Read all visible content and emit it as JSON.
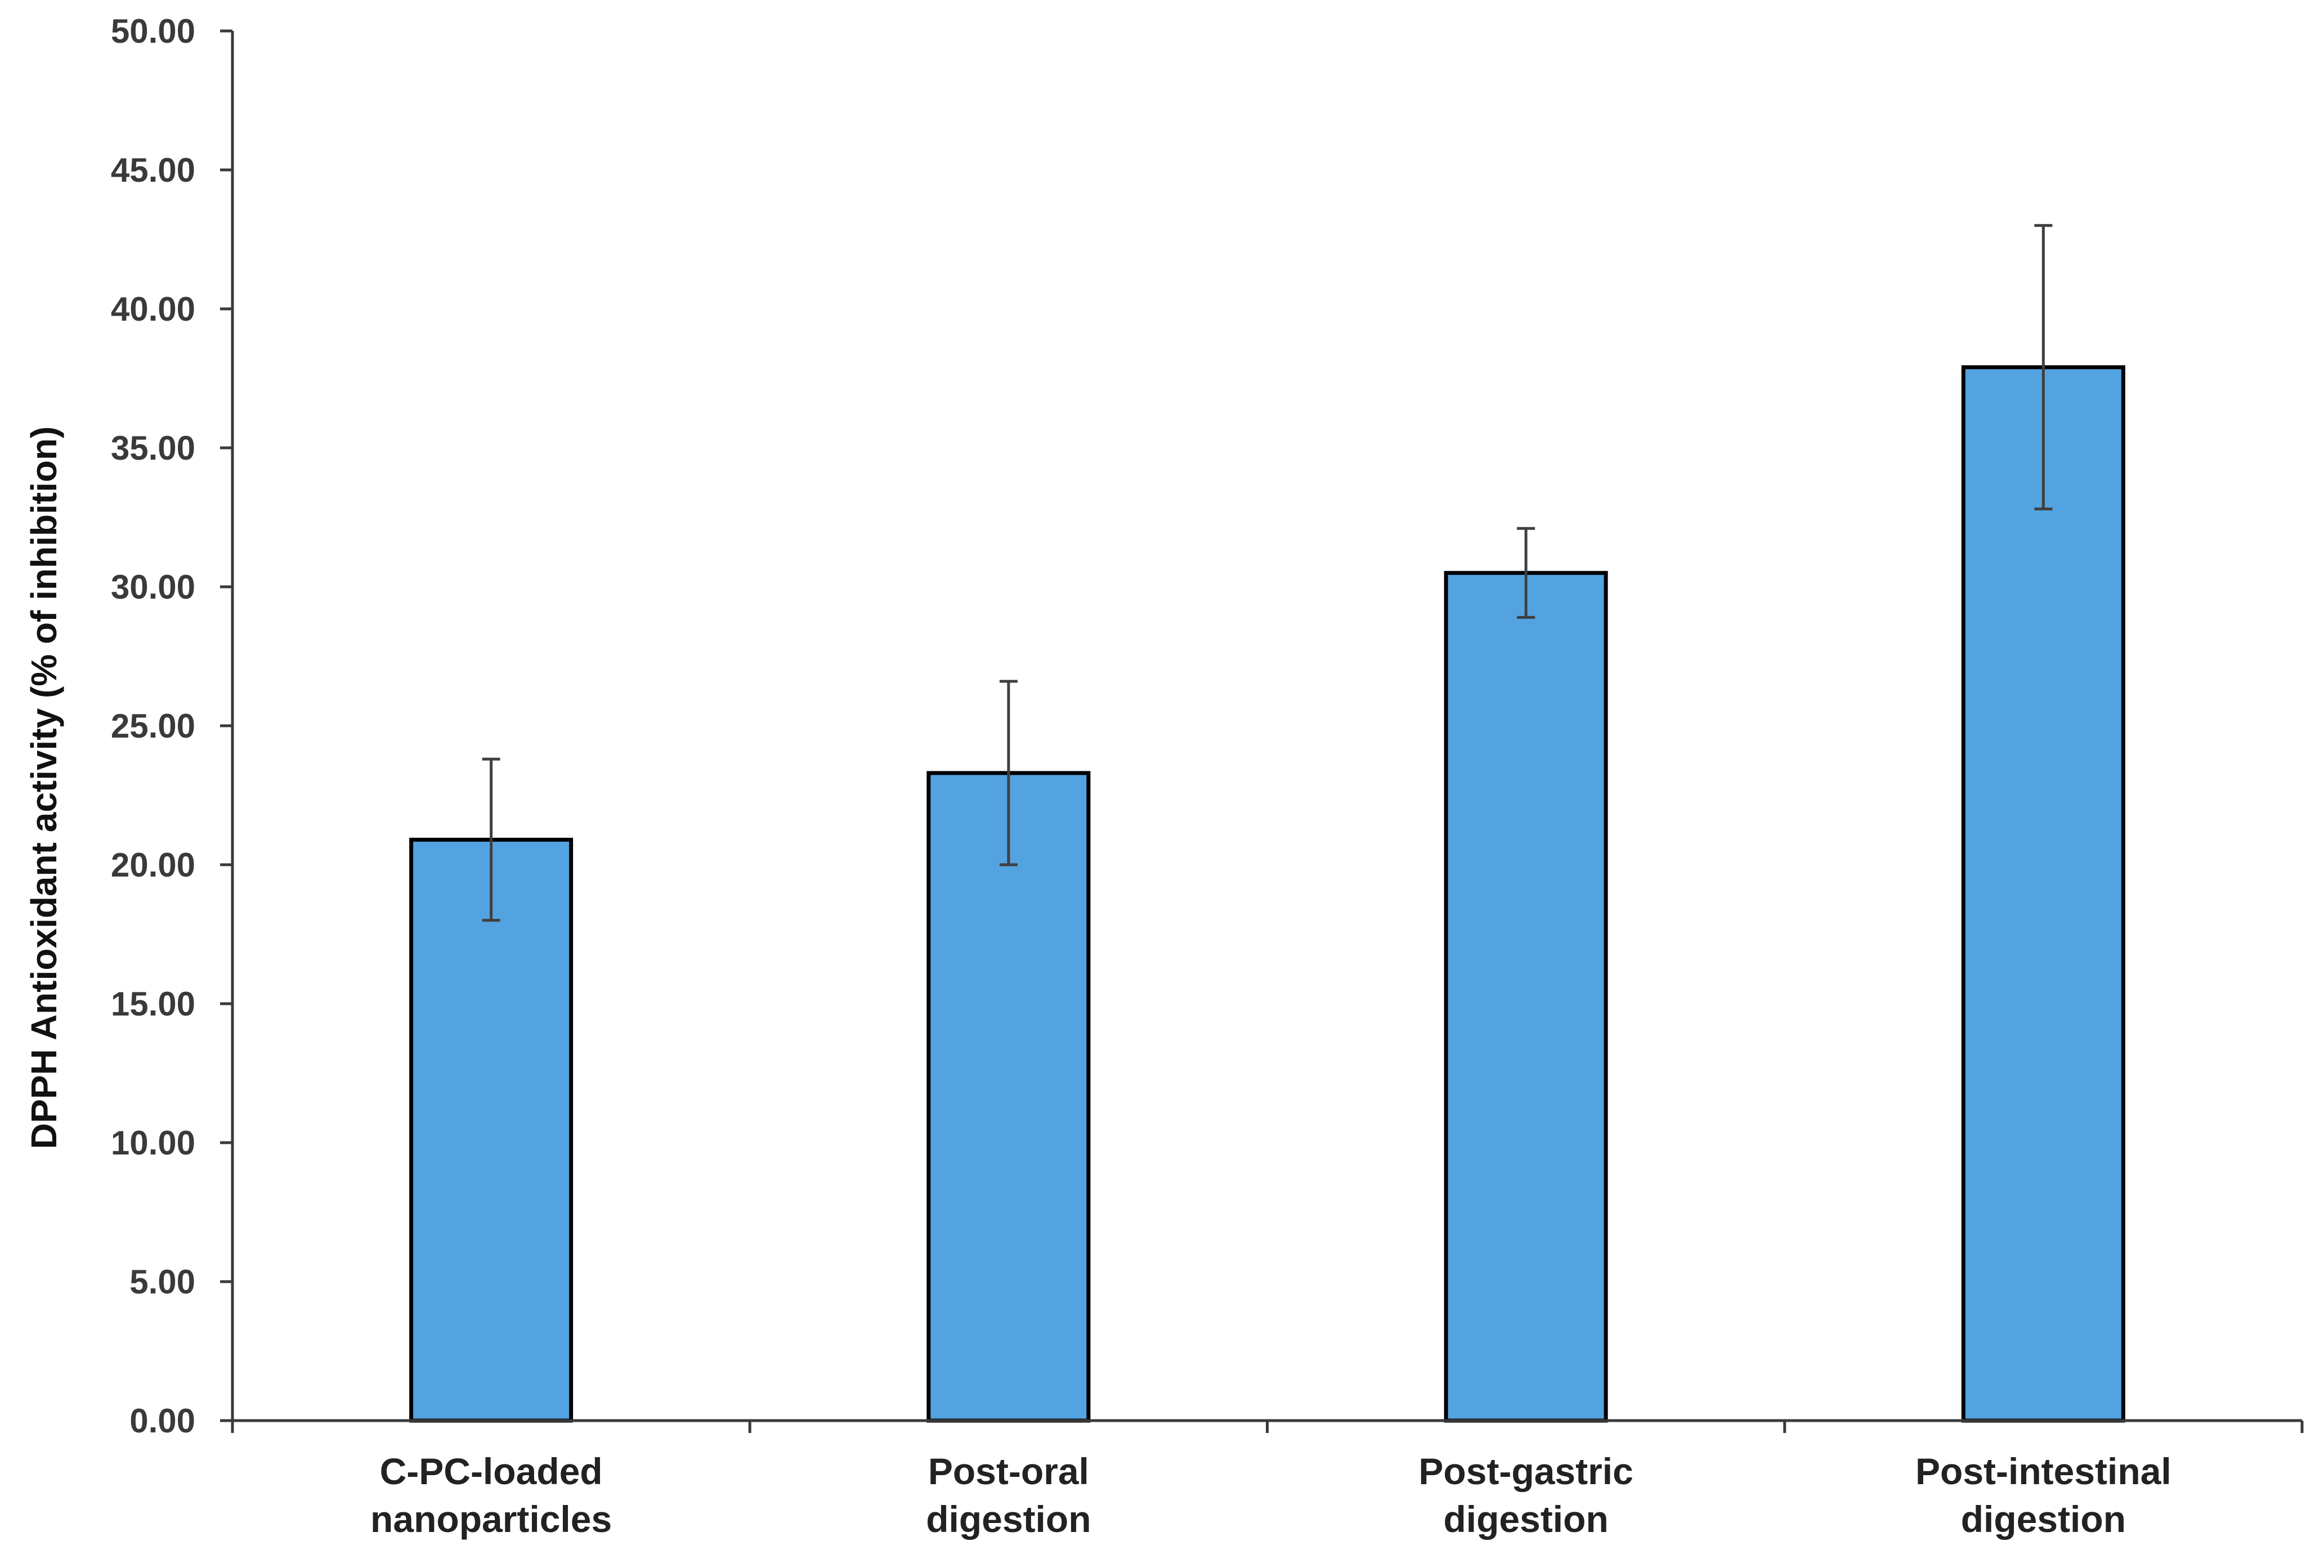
{
  "chart_data": {
    "type": "bar",
    "title": "",
    "xlabel": "",
    "ylabel": "DPPH Antioxidant activity (% of inhibition)",
    "ylim": [
      0,
      50
    ],
    "yticks": [
      "0.00",
      "5.00",
      "10.00",
      "15.00",
      "20.00",
      "25.00",
      "30.00",
      "35.00",
      "40.00",
      "45.00",
      "50.00"
    ],
    "categories": [
      [
        "C-PC-loaded",
        "nanoparticles"
      ],
      [
        "Post-oral",
        "digestion"
      ],
      [
        "Post-gastric",
        "digestion"
      ],
      [
        "Post-intestinal",
        "digestion"
      ]
    ],
    "values": [
      20.9,
      23.3,
      30.5,
      37.9
    ],
    "error": [
      2.9,
      3.3,
      1.6,
      5.1
    ],
    "bar_color": "#53a3e0",
    "grid": false,
    "legend": "none"
  }
}
